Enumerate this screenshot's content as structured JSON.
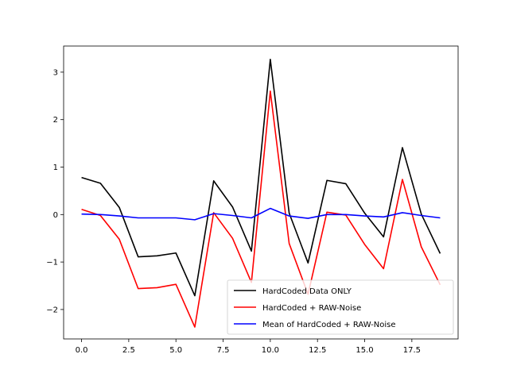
{
  "chart_data": {
    "type": "line",
    "title": "",
    "xlabel": "",
    "ylabel": "",
    "xlim": [
      -0.95,
      19.95
    ],
    "ylim": [
      -2.62,
      3.55
    ],
    "grid": false,
    "legend_position": "lower-right",
    "x": [
      0,
      1,
      2,
      3,
      4,
      5,
      6,
      7,
      8,
      9,
      10,
      11,
      12,
      13,
      14,
      15,
      16,
      17,
      18,
      19
    ],
    "x_ticks": [
      0.0,
      2.5,
      5.0,
      7.5,
      10.0,
      12.5,
      15.0,
      17.5
    ],
    "x_tick_labels": [
      "0.0",
      "2.5",
      "5.0",
      "7.5",
      "10.0",
      "12.5",
      "15.0",
      "17.5"
    ],
    "y_ticks": [
      -2,
      -1,
      0,
      1,
      2,
      3
    ],
    "y_tick_labels": [
      "−2",
      "−1",
      "0",
      "1",
      "2",
      "3"
    ],
    "series": [
      {
        "name": "HardCoded Data ONLY",
        "color": "#000000",
        "values": [
          0.78,
          0.66,
          0.15,
          -0.89,
          -0.87,
          -0.81,
          -1.71,
          0.71,
          0.16,
          -0.77,
          3.27,
          0.03,
          -1.02,
          0.72,
          0.65,
          0.03,
          -0.47,
          1.41,
          0.01,
          -0.82
        ]
      },
      {
        "name": "HardCoded + RAW-Noise",
        "color": "#ff0000",
        "values": [
          0.11,
          -0.02,
          -0.52,
          -1.56,
          -1.54,
          -1.47,
          -2.37,
          0.04,
          -0.5,
          -1.43,
          2.6,
          -0.61,
          -1.68,
          0.05,
          -0.01,
          -0.63,
          -1.14,
          0.74,
          -0.68,
          -1.48
        ]
      },
      {
        "name": "Mean of HardCoded + RAW-Noise",
        "color": "#0000ff",
        "values": [
          0.01,
          0.0,
          -0.03,
          -0.07,
          -0.07,
          -0.07,
          -0.11,
          0.02,
          -0.02,
          -0.07,
          0.13,
          -0.03,
          -0.08,
          0.0,
          0.0,
          -0.03,
          -0.05,
          0.04,
          -0.02,
          -0.07
        ]
      }
    ]
  }
}
